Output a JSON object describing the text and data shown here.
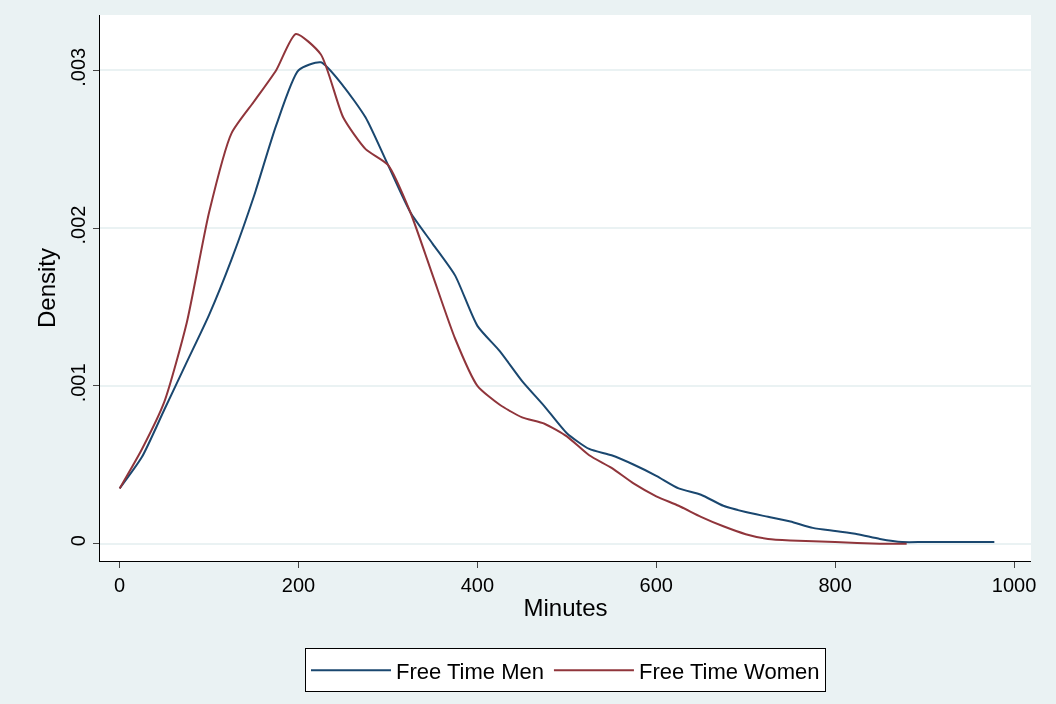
{
  "chart_data": {
    "type": "line",
    "xlabel": "Minutes",
    "ylabel": "Density",
    "xlim": [
      -22,
      1019
    ],
    "xticks": [
      0,
      200,
      400,
      600,
      800,
      1000
    ],
    "ylim": [
      -0.00011,
      0.00335
    ],
    "yticks": [
      {
        "value": 0,
        "label": "0"
      },
      {
        "value": 0.001,
        "label": ".001"
      },
      {
        "value": 0.002,
        "label": ".002"
      },
      {
        "value": 0.003,
        "label": ".003"
      }
    ],
    "grid": "y",
    "legend": "bottom",
    "marker": "none",
    "line_style": "solid",
    "series": [
      {
        "name": "Free Time Men",
        "color": "#1a476f",
        "x": [
          0,
          25,
          50,
          75,
          100,
          125,
          150,
          175,
          200,
          225,
          250,
          275,
          300,
          325,
          350,
          375,
          400,
          425,
          450,
          475,
          500,
          525,
          550,
          575,
          600,
          625,
          650,
          675,
          700,
          725,
          750,
          775,
          800,
          825,
          850,
          875,
          900,
          950,
          978
        ],
        "values": [
          0.00035,
          0.00055,
          0.00085,
          0.00115,
          0.00145,
          0.0018,
          0.0022,
          0.00265,
          0.003,
          0.00305,
          0.0029,
          0.0027,
          0.0024,
          0.0021,
          0.0019,
          0.0017,
          0.00138,
          0.00122,
          0.00103,
          0.00087,
          0.0007,
          0.0006,
          0.00056,
          0.0005,
          0.00043,
          0.00035,
          0.00031,
          0.00024,
          0.0002,
          0.00017,
          0.00014,
          0.0001,
          8e-05,
          6e-05,
          3e-05,
          1e-05,
          1e-05,
          1e-05,
          1e-05
        ]
      },
      {
        "name": "Free Time Women",
        "color": "#90353b",
        "x": [
          0,
          25,
          50,
          75,
          100,
          125,
          150,
          175,
          197,
          225,
          250,
          275,
          300,
          325,
          350,
          375,
          400,
          425,
          450,
          475,
          500,
          525,
          550,
          575,
          600,
          625,
          650,
          675,
          700,
          725,
          750,
          800,
          850,
          880
        ],
        "values": [
          0.00035,
          0.0006,
          0.0009,
          0.0014,
          0.0021,
          0.0026,
          0.0028,
          0.003,
          0.00323,
          0.0031,
          0.0027,
          0.0025,
          0.0024,
          0.0021,
          0.0017,
          0.0013,
          0.001,
          0.00088,
          0.0008,
          0.00076,
          0.00068,
          0.00056,
          0.00048,
          0.00038,
          0.0003,
          0.00024,
          0.00017,
          0.00011,
          6e-05,
          3e-05,
          2e-05,
          1e-05,
          0,
          0
        ]
      }
    ]
  }
}
